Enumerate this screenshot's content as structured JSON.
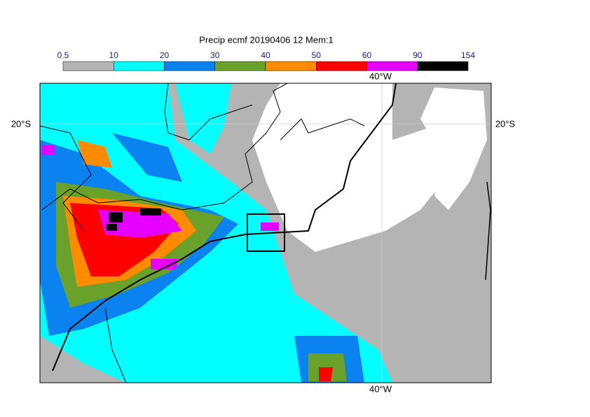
{
  "title": "Precip ecmf 20190406 12 Mem:1",
  "colorbar": {
    "levels": [
      0.5,
      10,
      20,
      30,
      40,
      50,
      60,
      90,
      154
    ],
    "colors": [
      "#b4b4b4",
      "#00ffff",
      "#0a82f0",
      "#6aa12a",
      "#ff8c00",
      "#ff0000",
      "#e600ff",
      "#000000"
    ]
  },
  "labels": {
    "lat_left": "20°S",
    "lat_right": "20°S",
    "lon_top": "40°W",
    "lon_bottom": "40°W"
  }
}
